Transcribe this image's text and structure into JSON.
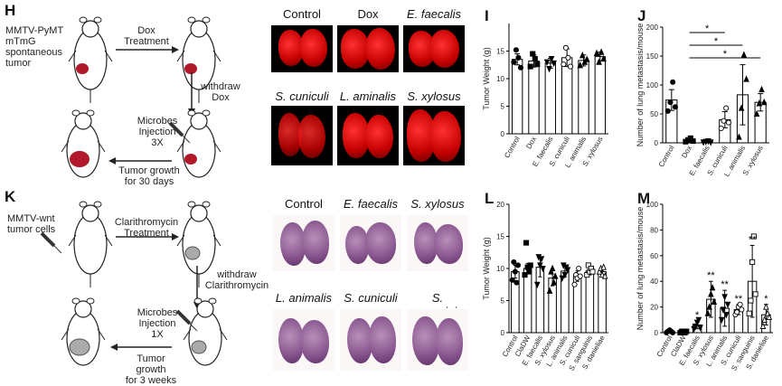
{
  "panels": {
    "H": {
      "letter": "H",
      "model_lines": [
        "MMTV-PyMT",
        "mTmG",
        "spontaneous",
        "tumor"
      ],
      "step1_lines": [
        "Dox",
        "Treatment"
      ],
      "step2_lines": [
        "withdraw",
        "Dox"
      ],
      "step3_lines": [
        "Microbes",
        "Injection",
        "3X"
      ],
      "step4_lines": [
        "Tumor growth",
        "for 30 days"
      ],
      "images": [
        {
          "title": "Control",
          "italic": false
        },
        {
          "title": "Dox",
          "italic": false
        },
        {
          "title": "E. faecalis",
          "italic": true
        },
        {
          "title": "S. cuniculi",
          "italic": true
        },
        {
          "title": "L. aminalis",
          "italic": true
        },
        {
          "title": "S. xylosus",
          "italic": true
        }
      ]
    },
    "K": {
      "letter": "K",
      "model_lines": [
        "MMTV-wnt",
        "tumor cells"
      ],
      "step1_lines": [
        "Clarithromycin",
        "Treatment"
      ],
      "step2_lines": [
        "withdraw",
        "Clarithromycin"
      ],
      "step3_lines": [
        "Microbes",
        "Injection",
        "1X"
      ],
      "step4_lines": [
        "Tumor growth",
        "for 3 weeks"
      ],
      "images": [
        {
          "title": "Control",
          "italic": false
        },
        {
          "title": "E. faecalis",
          "italic": true
        },
        {
          "title": "S. xylosus",
          "italic": true
        },
        {
          "title": "L. animalis",
          "italic": true
        },
        {
          "title": "S. cuniculi",
          "italic": true
        },
        {
          "title": "S. sanguinis",
          "italic": true
        }
      ]
    }
  },
  "chart_data": [
    {
      "id": "I",
      "letter": "I",
      "type": "bar",
      "ylabel": "Tumor Weight (g)",
      "ylim": [
        0,
        20
      ],
      "yticks": [
        0,
        5,
        10,
        15
      ],
      "categories": [
        "Control",
        "Dox",
        "E. faecalis",
        "S. cuniculi",
        "L. animalis",
        "S. xylosus"
      ],
      "values": [
        13.5,
        13.2,
        12.8,
        13.8,
        13.3,
        14.0
      ],
      "errors": [
        1.0,
        1.1,
        0.9,
        1.6,
        1.0,
        0.8
      ],
      "points": [
        [
          13.0,
          15.2,
          13.8,
          12.0
        ],
        [
          12.2,
          14.5,
          13.6,
          12.6
        ],
        [
          13.0,
          11.8,
          13.6,
          12.8
        ],
        [
          12.6,
          15.6,
          13.8,
          12.2
        ],
        [
          12.4,
          14.2,
          13.0,
          13.5
        ],
        [
          14.6,
          13.0,
          14.8,
          13.6
        ]
      ],
      "markers": [
        "circle",
        "square",
        "triangle-down",
        "circle-open",
        "triangle-up",
        "triangle-up"
      ]
    },
    {
      "id": "J",
      "letter": "J",
      "type": "bar",
      "ylabel": "Number of lung metastasis/mouse",
      "ylim": [
        0,
        200
      ],
      "yticks": [
        0,
        50,
        100,
        150,
        200
      ],
      "categories": [
        "Control",
        "Dox",
        "E. faecalis",
        "S. cuniculi",
        "L. animalis",
        "S. xylosus"
      ],
      "values": [
        74,
        5,
        2,
        40,
        83,
        70
      ],
      "errors": [
        18,
        3,
        1,
        14,
        52,
        15
      ],
      "points": [
        [
          55,
          70,
          105,
          62
        ],
        [
          2,
          5,
          8,
          3
        ],
        [
          1,
          2,
          3,
          1
        ],
        [
          25,
          38,
          60,
          35
        ],
        [
          10,
          60,
          152,
          110
        ],
        [
          50,
          68,
          92,
          70
        ]
      ],
      "markers": [
        "circle",
        "square",
        "triangle-down",
        "circle-open",
        "triangle-up",
        "triangle-up"
      ],
      "significance": [
        {
          "from": 1,
          "to": 3,
          "label": "*"
        },
        {
          "from": 1,
          "to": 4,
          "label": "*"
        },
        {
          "from": 1,
          "to": 5,
          "label": "*"
        }
      ]
    },
    {
      "id": "L",
      "letter": "L",
      "type": "bar",
      "ylabel": "Tumor Weight (g)",
      "ylim": [
        0,
        20
      ],
      "yticks": [
        0,
        5,
        10,
        15,
        20
      ],
      "categories": [
        "Control",
        "ClaDW",
        "E. faecalis",
        "S. xylosus",
        "L. animalis",
        "S. cuniculi",
        "S. sanguinis",
        "S. danieliae"
      ],
      "values": [
        9.5,
        10.0,
        10.2,
        8.5,
        9.6,
        8.8,
        9.6,
        9.5
      ],
      "errors": [
        1.0,
        0.8,
        1.5,
        1.2,
        0.9,
        0.8,
        0.6,
        0.6
      ],
      "points": [
        [
          8.2,
          11.0,
          9.5,
          7.8,
          10.5
        ],
        [
          9.0,
          14.0,
          10.2,
          9.5,
          10.5
        ],
        [
          7.5,
          11.8,
          10.5,
          11.5,
          10.0
        ],
        [
          6.5,
          9.5,
          10.0,
          7.8,
          8.8
        ],
        [
          8.5,
          10.5,
          9.0,
          10.2,
          9.8
        ],
        [
          7.5,
          9.0,
          8.5,
          10.0,
          8.8
        ],
        [
          9.0,
          10.5,
          9.5,
          10.0,
          9.5
        ],
        [
          9.5,
          10.0,
          9.0,
          10.2,
          8.8
        ]
      ],
      "markers": [
        "circle",
        "square",
        "triangle-down",
        "triangle-up",
        "triangle-down",
        "circle-open",
        "square-open",
        "triangle-up-open"
      ]
    },
    {
      "id": "M",
      "letter": "M",
      "type": "bar",
      "ylabel": "Number of lung metastasis/mouse",
      "ylim": [
        0,
        100
      ],
      "yticks": [
        0,
        20,
        40,
        60,
        80,
        100
      ],
      "categories": [
        "Control",
        "ClaDW",
        "E. faecalis",
        "S. xylosus",
        "L. animalis",
        "S. cuniculi",
        "S. sanguinis",
        "S. danieliae"
      ],
      "values": [
        1,
        1,
        6,
        26,
        19,
        18,
        40,
        14
      ],
      "errors": [
        0.5,
        0.5,
        3,
        14,
        14,
        4,
        28,
        8
      ],
      "points": [
        [
          0,
          1,
          2,
          1,
          0
        ],
        [
          0,
          1,
          1,
          0,
          1
        ],
        [
          3,
          5,
          8,
          10,
          4
        ],
        [
          15,
          20,
          30,
          35,
          24
        ],
        [
          10,
          18,
          28,
          14,
          22
        ],
        [
          14,
          16,
          20,
          22,
          18
        ],
        [
          15,
          25,
          55,
          75,
          30
        ],
        [
          5,
          10,
          20,
          15,
          12
        ]
      ],
      "markers": [
        "circle",
        "square",
        "triangle-down",
        "triangle-up",
        "triangle-down",
        "circle-open",
        "square-open",
        "triangle-up-open"
      ],
      "stars": [
        "",
        "",
        "*",
        "**",
        "**",
        "**",
        "**",
        "*"
      ]
    }
  ]
}
